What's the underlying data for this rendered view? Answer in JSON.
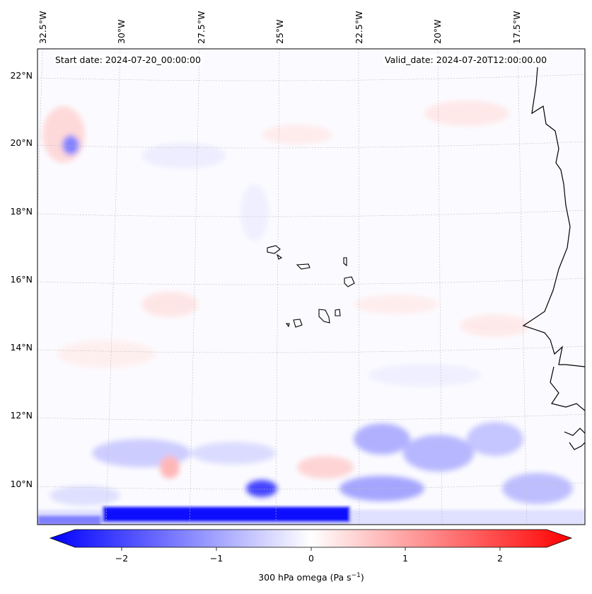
{
  "header": {
    "start_date": "Start date: 2024-07-20_00:00:00",
    "valid_date": "Valid_date: 2024-07-20T12:00:00.00"
  },
  "axes": {
    "lon_labels": [
      "32.5°W",
      "30°W",
      "27.5°W",
      "25°W",
      "22.5°W",
      "20°W",
      "17.5°W"
    ],
    "lat_labels": [
      "22°N",
      "20°N",
      "18°N",
      "16°N",
      "14°N",
      "12°N",
      "10°N"
    ]
  },
  "colorbar": {
    "label_prefix": "300 hPa omega (Pa s",
    "label_sup": "−1",
    "label_suffix": ")",
    "ticks": [
      "−2",
      "−1",
      "0",
      "1",
      "2"
    ],
    "min": -2.75,
    "max": 2.75,
    "colormap": "bwr",
    "low_color": "#0000ff",
    "mid_color": "#ffffff",
    "high_color": "#ff0000"
  },
  "map": {
    "field": "300 hPa omega",
    "projection": "Lambert conformal",
    "gridlines": true,
    "coastline_color": "#000000"
  }
}
